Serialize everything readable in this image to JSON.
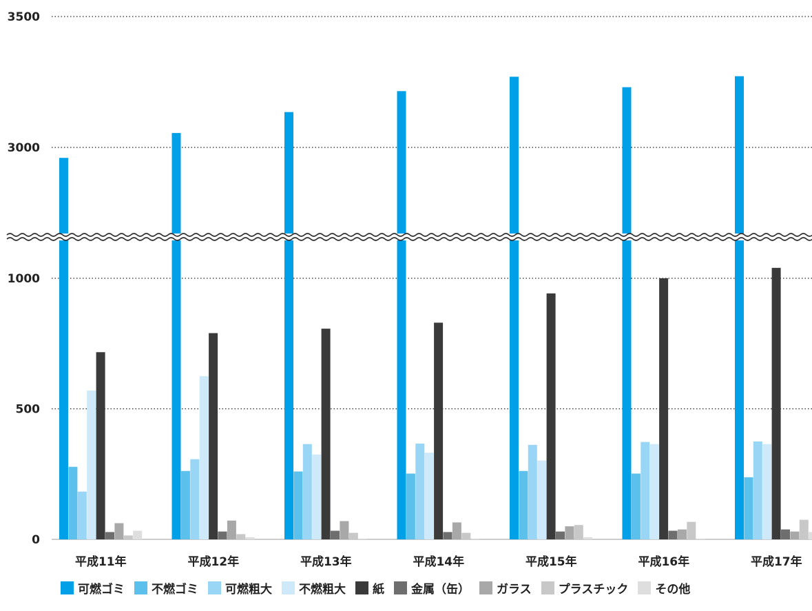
{
  "chart_data": {
    "type": "bar",
    "axis_break": [
      1200,
      2750
    ],
    "ylim": [
      0,
      3500
    ],
    "yticks": [
      "0",
      "500",
      "1000",
      "3000",
      "3500"
    ],
    "grid": "dotted horizontal",
    "legend_position": "bottom",
    "categories": [
      "平成11年",
      "平成12年",
      "平成13年",
      "平成14年",
      "平成15年",
      "平成16年",
      "平成17年"
    ],
    "series": [
      {
        "name": "可燃ゴミ",
        "color": "#00A0E9",
        "values": [
          2960,
          3055,
          3135,
          3215,
          3270,
          3230,
          3272
        ]
      },
      {
        "name": "不燃ゴミ",
        "color": "#5BC0EB",
        "values": [
          278,
          262,
          260,
          252,
          262,
          252,
          238
        ]
      },
      {
        "name": "可燃粗大",
        "color": "#99D5F5",
        "values": [
          183,
          307,
          365,
          367,
          362,
          373,
          375
        ]
      },
      {
        "name": "不燃粗大",
        "color": "#CDE9FA",
        "values": [
          570,
          625,
          325,
          332,
          302,
          365,
          365
        ]
      },
      {
        "name": "紙",
        "color": "#3A3A3A",
        "values": [
          717,
          790,
          807,
          830,
          942,
          1000,
          1040
        ]
      },
      {
        "name": "金属（缶）",
        "color": "#6E6E6E",
        "values": [
          28,
          30,
          33,
          28,
          30,
          33,
          38
        ]
      },
      {
        "name": "ガラス",
        "color": "#A8A8A8",
        "values": [
          62,
          72,
          70,
          65,
          50,
          38,
          30
        ]
      },
      {
        "name": "プラスチック",
        "color": "#C8C8C8",
        "values": [
          15,
          20,
          25,
          25,
          55,
          67,
          75
        ]
      },
      {
        "name": "その他",
        "color": "#DEDEDE",
        "values": [
          33,
          8,
          3,
          3,
          8,
          3,
          28
        ]
      }
    ]
  }
}
